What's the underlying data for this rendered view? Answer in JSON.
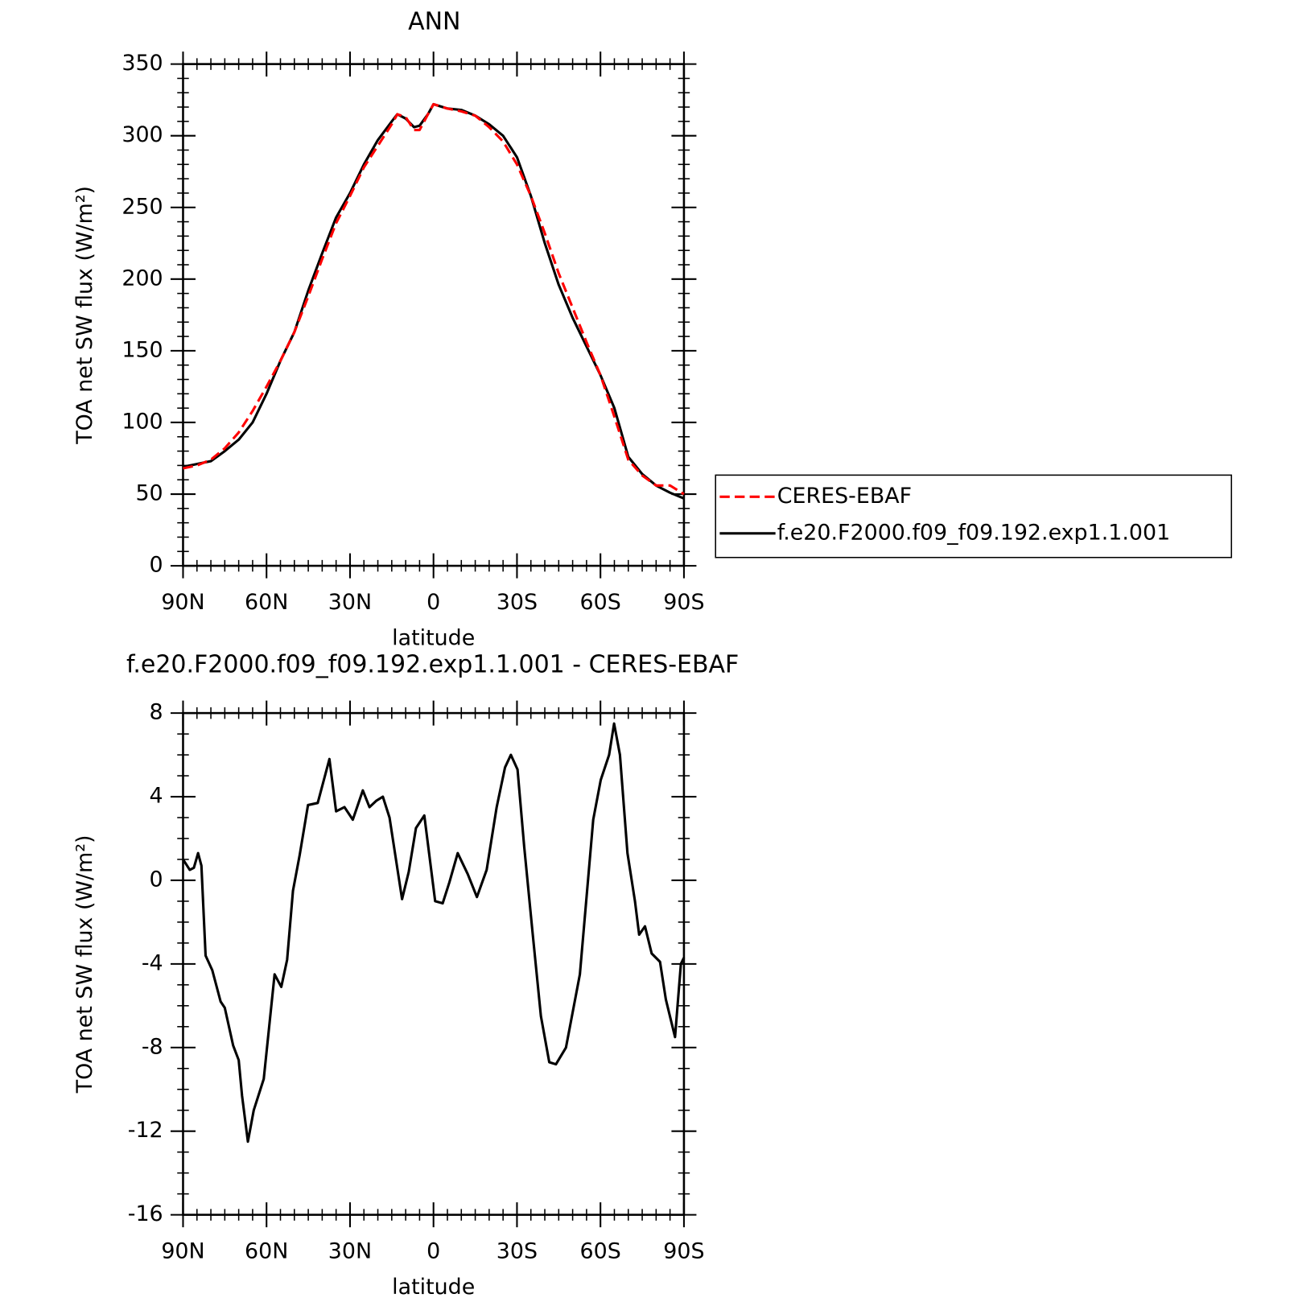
{
  "chart_data": [
    {
      "type": "line",
      "title": "ANN",
      "xlabel": "latitude",
      "ylabel": "TOA net SW flux (W/m²)",
      "x": [
        90,
        85,
        80,
        75,
        70,
        65,
        60,
        55,
        50,
        45,
        40,
        35,
        30,
        25,
        20,
        15,
        13,
        10,
        7,
        5,
        2,
        0,
        -5,
        -10,
        -15,
        -20,
        -25,
        -30,
        -35,
        -40,
        -45,
        -50,
        -55,
        -60,
        -65,
        -70,
        -75,
        -80,
        -85,
        -90
      ],
      "series": [
        {
          "name": "CERES-EBAF",
          "color": "#ff0000",
          "line_style": "dashed",
          "values": [
            68,
            70,
            74,
            82,
            93,
            108,
            125,
            143,
            163,
            188,
            214,
            239,
            258,
            278,
            293,
            308,
            315,
            313,
            304,
            304,
            315,
            322,
            319,
            317,
            314,
            306,
            296,
            280,
            258,
            232,
            204,
            180,
            156,
            133,
            104,
            74,
            63,
            56,
            56,
            50
          ]
        },
        {
          "name": "f.e20.F2000.f09_f09.192.exp1.1.001",
          "color": "#000000",
          "line_style": "solid",
          "values": [
            69,
            71,
            73,
            80,
            88,
            100,
            120,
            143,
            163,
            192,
            218,
            243,
            260,
            280,
            297,
            310,
            315,
            312,
            306,
            307,
            315,
            322,
            319,
            318,
            314,
            308,
            300,
            285,
            258,
            225,
            196,
            173,
            153,
            133,
            110,
            76,
            64,
            56,
            51,
            47
          ]
        }
      ],
      "xlim": [
        90,
        -90
      ],
      "xticks": [
        {
          "value": 90,
          "label": "90N"
        },
        {
          "value": 60,
          "label": "60N"
        },
        {
          "value": 30,
          "label": "30N"
        },
        0,
        {
          "value": -30,
          "label": "30S"
        },
        {
          "value": -60,
          "label": "60S"
        },
        {
          "value": -90,
          "label": "90S"
        }
      ],
      "ylim": [
        0,
        350
      ],
      "yticks": [
        0,
        50,
        100,
        150,
        200,
        250,
        300,
        350
      ],
      "legend": "right"
    },
    {
      "type": "line",
      "title": "f.e20.F2000.f09_f09.192.exp1.1.001 - CERES-EBAF",
      "xlabel": "latitude",
      "ylabel": "TOA net SW flux (W/m²)",
      "x": [
        90,
        87.6,
        86.1,
        84.6,
        83.4,
        81.9,
        79.5,
        76.5,
        75,
        72,
        70,
        68.8,
        66.7,
        64.6,
        61,
        57.1,
        54.7,
        52.6,
        50.5,
        48.1,
        45.1,
        41.6,
        37.4,
        35,
        32,
        29,
        25.4,
        23,
        20.6,
        18.2,
        15.8,
        11.3,
        8.9,
        6.3,
        3.3,
        -0.6,
        -3.3,
        -5.7,
        -8.7,
        -12.3,
        -15.6,
        -19.1,
        -22.7,
        -25.7,
        -27.8,
        -30.2,
        -32.6,
        -35.6,
        -38.6,
        -41.6,
        -44,
        -47.6,
        -52.6,
        -57.4,
        -60.1,
        -63.1,
        -64.9,
        -67,
        -69.7,
        -72.4,
        -73.9,
        -76,
        -78.4,
        -81.4,
        -83.5,
        -86.8,
        -88.9,
        -90
      ],
      "color": "#000000",
      "values": [
        1.0,
        0.5,
        0.6,
        1.3,
        0.7,
        -3.6,
        -4.3,
        -5.8,
        -6.1,
        -7.9,
        -8.6,
        -10.3,
        -12.5,
        -11,
        -9.5,
        -4.5,
        -5.1,
        -3.8,
        -0.5,
        1.2,
        3.6,
        3.7,
        5.8,
        3.3,
        3.5,
        2.9,
        4.3,
        3.5,
        3.8,
        4.0,
        3.0,
        -0.9,
        0.4,
        2.5,
        3.1,
        -1.0,
        -1.1,
        -0.1,
        1.3,
        0.3,
        -0.8,
        0.5,
        3.5,
        5.4,
        6.0,
        5.3,
        1.6,
        -2.5,
        -6.5,
        -8.7,
        -8.8,
        -8.0,
        -4.5,
        2.9,
        4.8,
        6.0,
        7.5,
        6,
        1.3,
        -1.0,
        -2.6,
        -2.2,
        -3.5,
        -3.9,
        -5.7,
        -7.5,
        -4,
        -3.7
      ],
      "xlim": [
        90,
        -90
      ],
      "xticks": [
        {
          "value": 90,
          "label": "90N"
        },
        {
          "value": 60,
          "label": "60N"
        },
        {
          "value": 30,
          "label": "30N"
        },
        0,
        {
          "value": -30,
          "label": "30S"
        },
        {
          "value": -60,
          "label": "60S"
        },
        {
          "value": -90,
          "label": "90S"
        }
      ],
      "ylim": [
        -16,
        8
      ],
      "yticks": [
        -16,
        -12,
        -8,
        -4,
        0,
        4,
        8
      ]
    }
  ]
}
